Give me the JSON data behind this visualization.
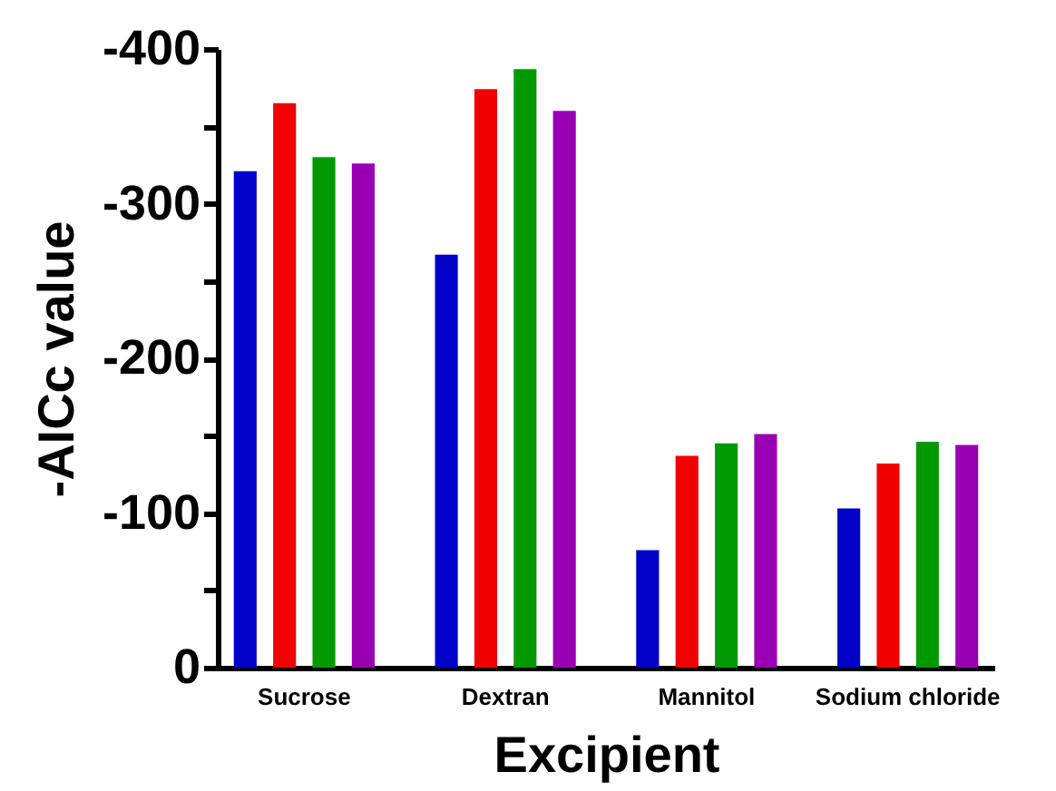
{
  "chart_data": {
    "type": "bar",
    "xlabel": "Excipient",
    "ylabel": "-AICc value",
    "categories": [
      "Sucrose",
      "Dextran",
      "Mannitol",
      "Sodium chloride"
    ],
    "series": [
      {
        "color": "#0000c8",
        "values": [
          -321,
          -267,
          -76,
          -103
        ]
      },
      {
        "color": "#f00000",
        "values": [
          -365,
          -374,
          -137,
          -132
        ]
      },
      {
        "color": "#009a00",
        "values": [
          -330,
          -387,
          -145,
          -146
        ]
      },
      {
        "color": "#9900b4",
        "values": [
          -326,
          -360,
          -151,
          -144
        ]
      }
    ],
    "ylim": [
      0,
      -400
    ],
    "yticks": [
      0,
      {
        "value": -50,
        "label": null
      },
      -100,
      {
        "value": -150,
        "label": null
      },
      -200,
      {
        "value": -250,
        "label": null
      },
      -300,
      {
        "value": -350,
        "label": null
      },
      -400
    ],
    "grid": false,
    "legend": false
  }
}
